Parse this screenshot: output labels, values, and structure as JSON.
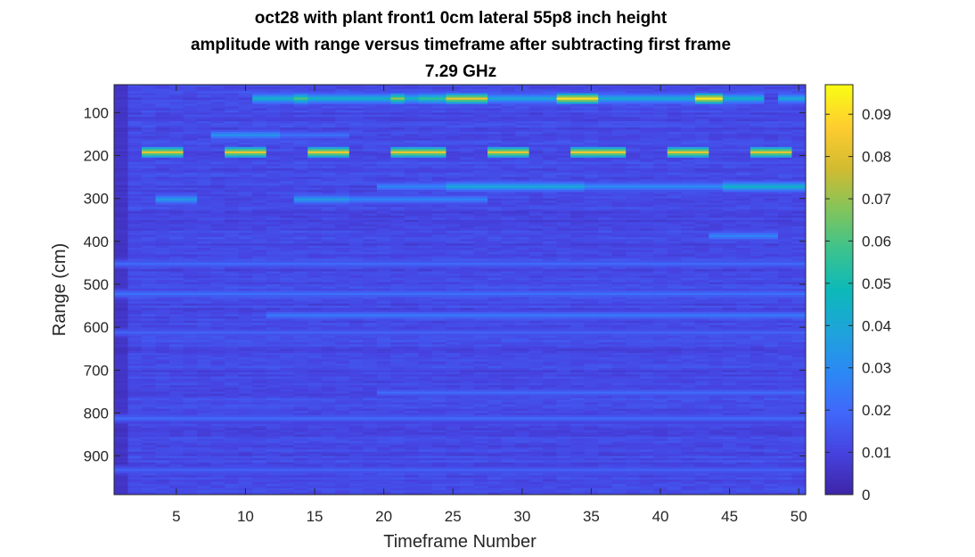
{
  "chart_data": {
    "type": "heatmap",
    "title": [
      "oct28 with plant front1 0cm lateral 55p8 inch height",
      "amplitude with range versus timeframe after subtracting first frame",
      "7.29 GHz"
    ],
    "xlabel": "Timeframe Number",
    "ylabel": "Range (cm)",
    "xlim": [
      0.5,
      50.5
    ],
    "ylim": [
      35,
      990
    ],
    "y_reversed": true,
    "xticks": [
      5,
      10,
      15,
      20,
      25,
      30,
      35,
      40,
      45,
      50
    ],
    "yticks": [
      100,
      200,
      300,
      400,
      500,
      600,
      700,
      800,
      900
    ],
    "colormap": "parula",
    "clim": [
      0,
      0.097
    ],
    "colorbar_ticks": [
      "0",
      "0.01",
      "0.02",
      "0.03",
      "0.04",
      "0.05",
      "0.06",
      "0.07",
      "0.08",
      "0.09"
    ],
    "colorbar_tick_values": [
      0,
      0.01,
      0.02,
      0.03,
      0.04,
      0.05,
      0.06,
      0.07,
      0.08,
      0.09
    ],
    "background_amplitude": 0.012,
    "features": [
      {
        "range_cm": 190,
        "segments": [
          {
            "frames": [
              3,
              5
            ],
            "amplitude": 0.082
          },
          {
            "frames": [
              9,
              11
            ],
            "amplitude": 0.083
          },
          {
            "frames": [
              15,
              17
            ],
            "amplitude": 0.084
          },
          {
            "frames": [
              21,
              24
            ],
            "amplitude": 0.083
          },
          {
            "frames": [
              28,
              30
            ],
            "amplitude": 0.083
          },
          {
            "frames": [
              34,
              37
            ],
            "amplitude": 0.084
          },
          {
            "frames": [
              41,
              43
            ],
            "amplitude": 0.083
          },
          {
            "frames": [
              47,
              49
            ],
            "amplitude": 0.082
          }
        ]
      },
      {
        "range_cm": 65,
        "segments": [
          {
            "frames": [
              11,
              19
            ],
            "amplitude": 0.045
          },
          {
            "frames": [
              14,
              14
            ],
            "amplitude": 0.06
          },
          {
            "frames": [
              20,
              22
            ],
            "amplitude": 0.045
          },
          {
            "frames": [
              21,
              21
            ],
            "amplitude": 0.07
          },
          {
            "frames": [
              23,
              24
            ],
            "amplitude": 0.055
          },
          {
            "frames": [
              25,
              27
            ],
            "amplitude": 0.082
          },
          {
            "frames": [
              28,
              32
            ],
            "amplitude": 0.04
          },
          {
            "frames": [
              33,
              35
            ],
            "amplitude": 0.09
          },
          {
            "frames": [
              36,
              42
            ],
            "amplitude": 0.042
          },
          {
            "frames": [
              43,
              44
            ],
            "amplitude": 0.092
          },
          {
            "frames": [
              45,
              47
            ],
            "amplitude": 0.045
          },
          {
            "frames": [
              49,
              50
            ],
            "amplitude": 0.04
          }
        ]
      },
      {
        "range_cm": 150,
        "segments": [
          {
            "frames": [
              8,
              12
            ],
            "amplitude": 0.032
          },
          {
            "frames": [
              13,
              17
            ],
            "amplitude": 0.022
          }
        ]
      },
      {
        "range_cm": 270,
        "segments": [
          {
            "frames": [
              20,
              24
            ],
            "amplitude": 0.028
          },
          {
            "frames": [
              25,
              34
            ],
            "amplitude": 0.04
          },
          {
            "frames": [
              35,
              44
            ],
            "amplitude": 0.03
          },
          {
            "frames": [
              45,
              50
            ],
            "amplitude": 0.045
          }
        ]
      },
      {
        "range_cm": 300,
        "segments": [
          {
            "frames": [
              4,
              6
            ],
            "amplitude": 0.035
          },
          {
            "frames": [
              14,
              17
            ],
            "amplitude": 0.035
          },
          {
            "frames": [
              18,
              27
            ],
            "amplitude": 0.028
          }
        ]
      },
      {
        "range_cm": 385,
        "segments": [
          {
            "frames": [
              44,
              48
            ],
            "amplitude": 0.028
          }
        ]
      },
      {
        "range_cm": 450,
        "segments": [
          {
            "frames": [
              1,
              50
            ],
            "amplitude": 0.02
          }
        ]
      },
      {
        "range_cm": 520,
        "segments": [
          {
            "frames": [
              1,
              50
            ],
            "amplitude": 0.022
          }
        ]
      },
      {
        "range_cm": 570,
        "segments": [
          {
            "frames": [
              12,
              50
            ],
            "amplitude": 0.024
          }
        ]
      },
      {
        "range_cm": 610,
        "segments": [
          {
            "frames": [
              1,
              50
            ],
            "amplitude": 0.018
          }
        ]
      },
      {
        "range_cm": 750,
        "segments": [
          {
            "frames": [
              20,
              50
            ],
            "amplitude": 0.02
          }
        ]
      },
      {
        "range_cm": 810,
        "segments": [
          {
            "frames": [
              1,
              50
            ],
            "amplitude": 0.02
          }
        ]
      },
      {
        "range_cm": 930,
        "segments": [
          {
            "frames": [
              1,
              50
            ],
            "amplitude": 0.018
          }
        ]
      }
    ]
  }
}
